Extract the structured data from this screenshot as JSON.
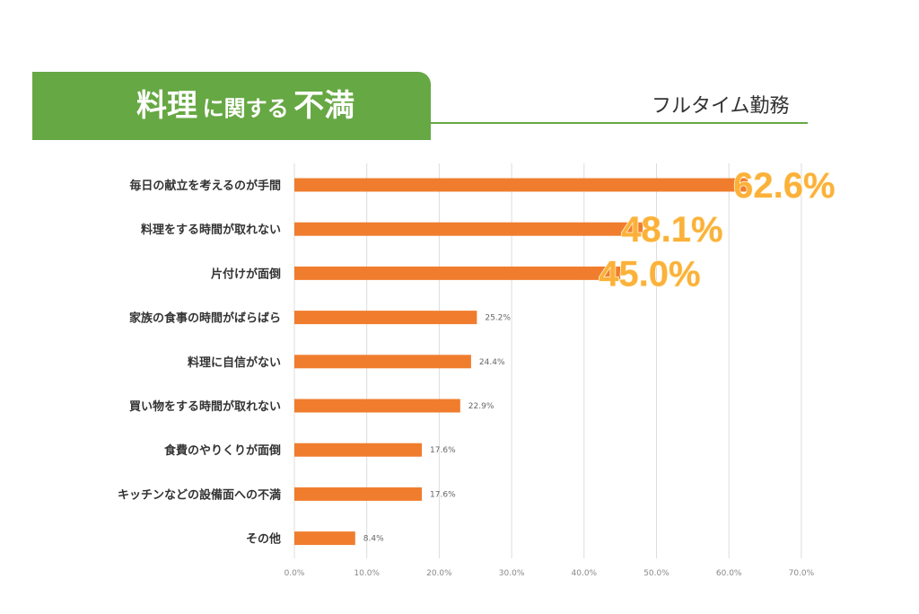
{
  "header": {
    "title_part1": "料理",
    "title_part2": "に関する",
    "title_part3": "不満",
    "subtitle": "フルタイム勤務"
  },
  "colors": {
    "bar": "#f07d2d",
    "header": "#66a843",
    "highlight": "#fbb13a",
    "grid": "#dddddd"
  },
  "chart_data": {
    "type": "bar",
    "orientation": "horizontal",
    "title": "料理に関する不満",
    "subtitle": "フルタイム勤務",
    "categories": [
      "毎日の献立を考えるのが手間",
      "料理をする時間が取れない",
      "片付けが面倒",
      "家族の食事の時間がばらばら",
      "料理に自信がない",
      "買い物をする時間が取れない",
      "食費のやりくりが面倒",
      "キッチンなどの設備面への不満",
      "その他"
    ],
    "values": [
      62.6,
      48.1,
      45.0,
      25.2,
      24.4,
      22.9,
      17.6,
      17.6,
      8.4
    ],
    "value_labels": [
      "62.6%",
      "48.1%",
      "45.0%",
      "25.2%",
      "24.4%",
      "22.9%",
      "17.6%",
      "17.6%",
      "8.4%"
    ],
    "highlighted_count": 3,
    "xlim": [
      0,
      70
    ],
    "xticks": [
      0,
      10,
      20,
      30,
      40,
      50,
      60,
      70
    ],
    "xtick_labels": [
      "0.0%",
      "10.0%",
      "20.0%",
      "30.0%",
      "40.0%",
      "50.0%",
      "60.0%",
      "70.0%"
    ],
    "grid": true
  }
}
